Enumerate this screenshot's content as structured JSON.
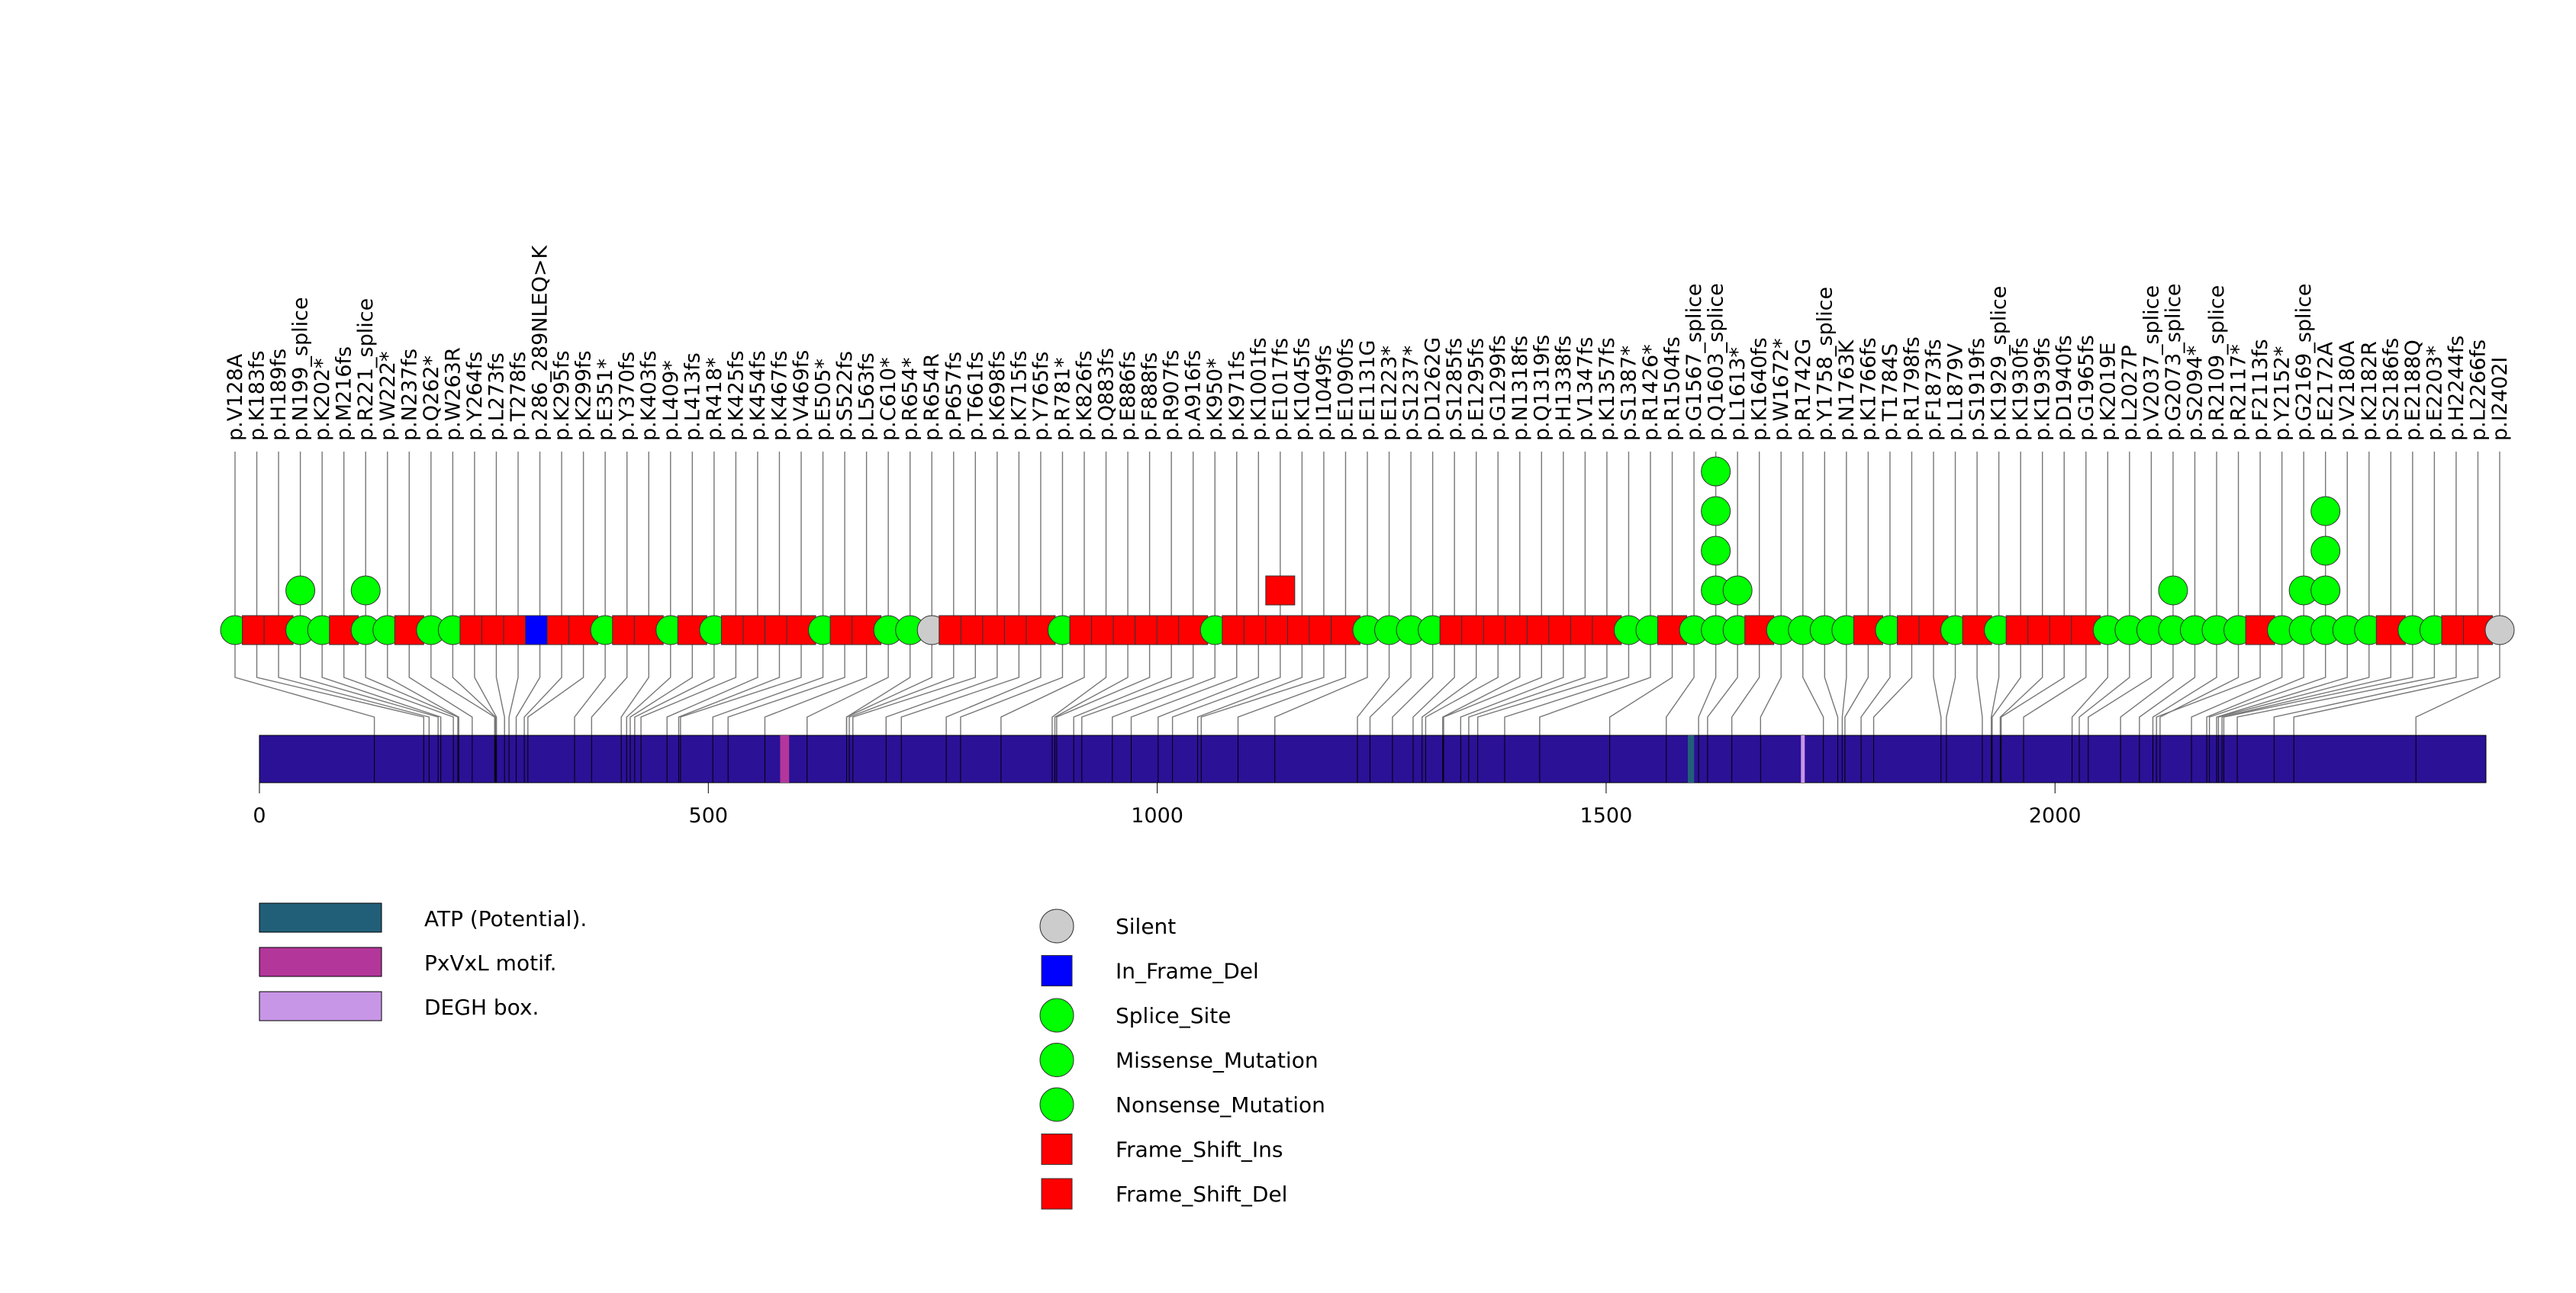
{
  "chart_data": {
    "type": "lollipop",
    "protein_length": 2480,
    "axis": {
      "min": 0,
      "max": 2480,
      "ticks": [
        0,
        500,
        1000,
        1500,
        2000
      ]
    },
    "domains": [
      {
        "name": "ATP (Potential).",
        "start": 1591,
        "end": 1598,
        "color": "#215f79"
      },
      {
        "name": "PxVxL motif.",
        "start": 580,
        "end": 590,
        "color": "#b3369a"
      },
      {
        "name": "DEGH box.",
        "start": 1717,
        "end": 1720,
        "color": "#c896e6"
      }
    ],
    "legend_domains": [
      "ATP (Potential).",
      "PxVxL motif.",
      "DEGH box."
    ],
    "legend_mutations": [
      {
        "label": "Silent",
        "shape": "circle",
        "color": "#cccccc"
      },
      {
        "label": "In_Frame_Del",
        "shape": "square",
        "color": "#0000ff"
      },
      {
        "label": "Splice_Site",
        "shape": "circle",
        "color": "#00ff00"
      },
      {
        "label": "Missense_Mutation",
        "shape": "circle",
        "color": "#00ff00"
      },
      {
        "label": "Nonsense_Mutation",
        "shape": "circle",
        "color": "#00ff00"
      },
      {
        "label": "Frame_Shift_Ins",
        "shape": "square",
        "color": "#ff0000"
      },
      {
        "label": "Frame_Shift_Del",
        "shape": "square",
        "color": "#ff0000"
      }
    ],
    "mutation_labels": [
      "p.V128A",
      "p.K183fs",
      "p.H189fs",
      "p.N199_splice",
      "p.K202*",
      "p.M216fs",
      "p.R221_splice",
      "p.W222*",
      "p.N237fs",
      "p.Q262*",
      "p.W263R",
      "p.Y264fs",
      "p.L273fs",
      "p.T278fs",
      "p.286_289NLEQ>K",
      "p.K295fs",
      "p.K299fs",
      "p.E351*",
      "p.Y370fs",
      "p.K403fs",
      "p.L409*",
      "p.L413fs",
      "p.R418*",
      "p.K425fs",
      "p.K454fs",
      "p.K467fs",
      "p.V469fs",
      "p.E505*",
      "p.S522fs",
      "p.L563fs",
      "p.C610*",
      "p.R654*",
      "p.R654R",
      "p.P657fs",
      "p.T661fs",
      "p.K698fs",
      "p.K715fs",
      "p.Y765fs",
      "p.R781*",
      "p.K826fs",
      "p.Q883fs",
      "p.E886fs",
      "p.F888fs",
      "p.R907fs",
      "p.A916fs",
      "p.K950*",
      "p.K971fs",
      "p.K1001fs",
      "p.E1017fs",
      "p.K1045fs",
      "p.I1049fs",
      "p.E1090fs",
      "p.E1131G",
      "p.E1223*",
      "p.S1237*",
      "p.D1262G",
      "p.S1285fs",
      "p.E1295fs",
      "p.G1299fs",
      "p.N1318fs",
      "p.Q1319fs",
      "p.H1338fs",
      "p.V1347fs",
      "p.K1357fs",
      "p.S1387*",
      "p.R1426*",
      "p.R1504fs",
      "p.G1567_splice",
      "p.Q1603_splice",
      "p.L1613*",
      "p.K1640fs",
      "p.W1672*",
      "p.R1742G",
      "p.Y1758_splice",
      "p.N1763K",
      "p.K1766fs",
      "p.T1784S",
      "p.R1798fs",
      "p.F1873fs",
      "p.L1879V",
      "p.S1919fs",
      "p.K1929_splice",
      "p.K1930fs",
      "p.K1939fs",
      "p.D1940fs",
      "p.G1965fs",
      "p.K2019E",
      "p.L2027P",
      "p.V2037_splice",
      "p.G2073_splice",
      "p.S2094*",
      "p.R2109_splice",
      "p.R2117*",
      "p.F2113fs",
      "p.Y2152*",
      "p.G2169_splice",
      "p.E2172A",
      "p.V2180A",
      "p.K2182R",
      "p.S2186fs",
      "p.E2188Q",
      "p.E2203*",
      "p.H2244fs",
      "p.L2266fs",
      "p.I2402I"
    ],
    "mutation_markers": [
      "missense",
      "frameshift",
      "frameshift",
      "splice",
      "splice",
      "frameshift",
      "splice",
      "splice",
      "frameshift",
      "splice",
      "missense",
      "frameshift",
      "frameshift",
      "frameshift",
      "inframe",
      "frameshift",
      "frameshift",
      "splice",
      "frameshift",
      "frameshift",
      "splice",
      "frameshift",
      "splice",
      "frameshift",
      "frameshift",
      "frameshift",
      "frameshift",
      "splice",
      "frameshift",
      "frameshift",
      "splice",
      "splice",
      "silent",
      "frameshift",
      "frameshift",
      "frameshift",
      "frameshift",
      "frameshift",
      "splice",
      "frameshift",
      "frameshift",
      "frameshift",
      "frameshift",
      "frameshift",
      "frameshift",
      "splice",
      "frameshift",
      "frameshift",
      "frameshift",
      "frameshift",
      "frameshift",
      "frameshift",
      "missense",
      "splice",
      "splice",
      "missense",
      "frameshift",
      "frameshift",
      "frameshift",
      "frameshift",
      "frameshift",
      "frameshift",
      "frameshift",
      "frameshift",
      "splice",
      "splice",
      "frameshift",
      "splice",
      "splice",
      "splice",
      "frameshift",
      "splice",
      "missense",
      "splice",
      "missense",
      "frameshift",
      "missense",
      "frameshift",
      "frameshift",
      "missense",
      "frameshift",
      "splice",
      "frameshift",
      "frameshift",
      "frameshift",
      "frameshift",
      "missense",
      "missense",
      "splice",
      "splice",
      "splice",
      "splice",
      "splice",
      "frameshift",
      "splice",
      "splice",
      "missense",
      "missense",
      "missense",
      "frameshift",
      "missense",
      "splice",
      "frameshift",
      "frameshift",
      "silent"
    ],
    "mutation_counts": [
      1,
      1,
      1,
      2,
      1,
      1,
      2,
      1,
      1,
      1,
      1,
      1,
      1,
      1,
      1,
      1,
      1,
      1,
      1,
      1,
      1,
      1,
      1,
      1,
      1,
      1,
      1,
      1,
      1,
      1,
      1,
      1,
      1,
      1,
      1,
      1,
      1,
      1,
      1,
      1,
      1,
      1,
      1,
      1,
      1,
      1,
      1,
      1,
      2,
      1,
      1,
      1,
      1,
      1,
      1,
      1,
      1,
      1,
      1,
      1,
      1,
      1,
      1,
      1,
      1,
      1,
      1,
      1,
      5,
      2,
      1,
      1,
      1,
      1,
      1,
      1,
      1,
      1,
      1,
      1,
      1,
      1,
      1,
      1,
      1,
      1,
      1,
      1,
      1,
      2,
      1,
      1,
      1,
      1,
      1,
      2,
      4,
      1,
      1,
      1,
      1,
      1,
      1,
      1,
      1
    ]
  }
}
